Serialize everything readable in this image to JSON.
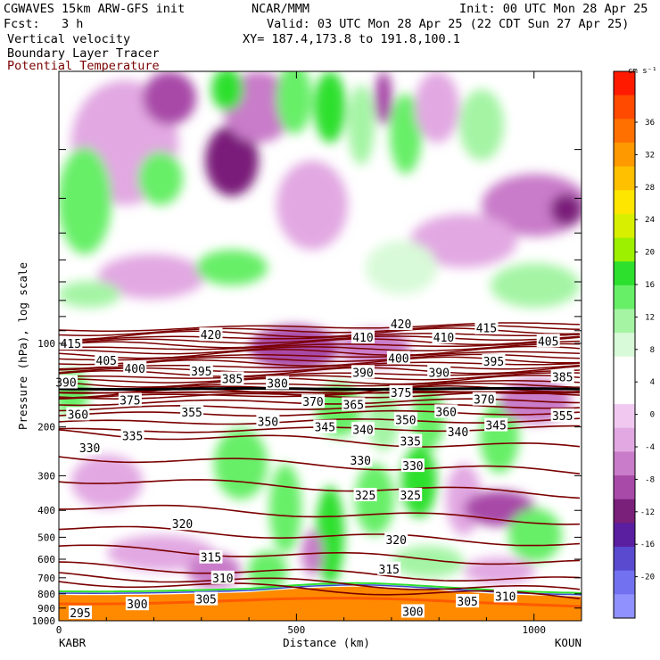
{
  "header": {
    "model": "CGWAVES 15km ARW-GFS init",
    "org": "NCAR/MMM",
    "init": "Init: 00 UTC Mon 28 Apr 25",
    "fcst": "Fcst:   3 h",
    "valid": "Valid: 03 UTC Mon 28 Apr 25 (22 CDT Sun 27 Apr 25)",
    "field1": "Vertical velocity",
    "xy": "XY= 187.4,173.8 to 191.8,100.1",
    "field2": "Boundary Layer Tracer",
    "field3": "Potential Temperature"
  },
  "colors": {
    "theta_line": "#7a0000",
    "bl_tracer": "#ff8a00"
  },
  "chart_data": {
    "type": "heatmap",
    "xlabel": "Distance (km)",
    "ylabel": "Pressure (hPa), log scale",
    "x_ticks": [
      "0",
      "500",
      "1000"
    ],
    "x_range": [
      0,
      1100
    ],
    "y_ticks": [
      "100",
      "200",
      "300",
      "400",
      "500",
      "600",
      "700",
      "800",
      "900",
      "1000"
    ],
    "y_tick_values": [
      100,
      200,
      300,
      400,
      500,
      600,
      700,
      800,
      900,
      1000
    ],
    "y_log_scale": true,
    "left_endpoint": "KABR",
    "right_endpoint": "KOUN",
    "colorbar": {
      "unit": "cm s⁻¹",
      "labels": [
        "36",
        "32",
        "28",
        "24",
        "20",
        "16",
        "12",
        "8",
        "4",
        "0",
        "-4",
        "-8",
        "-12",
        "-16",
        "-20"
      ],
      "values": [
        36,
        32,
        28,
        24,
        20,
        16,
        12,
        8,
        4,
        0,
        -4,
        -8,
        -12,
        -16,
        -20
      ],
      "colors": [
        "#ff1a00",
        "#ff4a00",
        "#ff7000",
        "#ff9900",
        "#ffc000",
        "#ffe600",
        "#d8f000",
        "#9cf000",
        "#2ee02e",
        "#68ef68",
        "#a4f4a4",
        "#d8fad8",
        "#ffffff",
        "#ffffff",
        "#f0c8f0",
        "#e2a8e2",
        "#c97cc9",
        "#a84aa8",
        "#7a1f7a",
        "#5a1fa0",
        "#5a4ad0",
        "#7272f0",
        "#9090ff"
      ]
    },
    "theta_contour_labels": [
      {
        "text": "415",
        "km": 25,
        "p": 100
      },
      {
        "text": "405",
        "km": 100,
        "p": 115
      },
      {
        "text": "400",
        "km": 160,
        "p": 123
      },
      {
        "text": "390",
        "km": 15,
        "p": 138
      },
      {
        "text": "420",
        "km": 320,
        "p": 93
      },
      {
        "text": "395",
        "km": 300,
        "p": 126
      },
      {
        "text": "385",
        "km": 365,
        "p": 134
      },
      {
        "text": "380",
        "km": 460,
        "p": 139
      },
      {
        "text": "375",
        "km": 150,
        "p": 160
      },
      {
        "text": "370",
        "km": 535,
        "p": 162
      },
      {
        "text": "365",
        "km": 620,
        "p": 166
      },
      {
        "text": "410",
        "km": 640,
        "p": 95
      },
      {
        "text": "390",
        "km": 640,
        "p": 127
      },
      {
        "text": "420",
        "km": 720,
        "p": 85
      },
      {
        "text": "400",
        "km": 715,
        "p": 113
      },
      {
        "text": "410",
        "km": 810,
        "p": 95
      },
      {
        "text": "390",
        "km": 800,
        "p": 127
      },
      {
        "text": "415",
        "km": 900,
        "p": 88
      },
      {
        "text": "395",
        "km": 915,
        "p": 116
      },
      {
        "text": "405",
        "km": 1030,
        "p": 98
      },
      {
        "text": "385",
        "km": 1060,
        "p": 132
      },
      {
        "text": "375",
        "km": 720,
        "p": 150
      },
      {
        "text": "370",
        "km": 895,
        "p": 159
      },
      {
        "text": "360",
        "km": 815,
        "p": 176
      },
      {
        "text": "355",
        "km": 1060,
        "p": 182
      },
      {
        "text": "360",
        "km": 40,
        "p": 180
      },
      {
        "text": "355",
        "km": 280,
        "p": 177
      },
      {
        "text": "350",
        "km": 440,
        "p": 191
      },
      {
        "text": "345",
        "km": 560,
        "p": 200
      },
      {
        "text": "340",
        "km": 640,
        "p": 204
      },
      {
        "text": "350",
        "km": 730,
        "p": 188
      },
      {
        "text": "345",
        "km": 920,
        "p": 197
      },
      {
        "text": "340",
        "km": 840,
        "p": 208
      },
      {
        "text": "335",
        "km": 155,
        "p": 215
      },
      {
        "text": "335",
        "km": 740,
        "p": 225
      },
      {
        "text": "330",
        "km": 65,
        "p": 238
      },
      {
        "text": "330",
        "km": 635,
        "p": 264
      },
      {
        "text": "330",
        "km": 745,
        "p": 276
      },
      {
        "text": "325",
        "km": 645,
        "p": 352
      },
      {
        "text": "325",
        "km": 740,
        "p": 352
      },
      {
        "text": "320",
        "km": 260,
        "p": 447
      },
      {
        "text": "320",
        "km": 710,
        "p": 510
      },
      {
        "text": "315",
        "km": 320,
        "p": 590
      },
      {
        "text": "315",
        "km": 695,
        "p": 650
      },
      {
        "text": "310",
        "km": 345,
        "p": 700
      },
      {
        "text": "310",
        "km": 940,
        "p": 815
      },
      {
        "text": "305",
        "km": 310,
        "p": 835
      },
      {
        "text": "305",
        "km": 860,
        "p": 850
      },
      {
        "text": "300",
        "km": 165,
        "p": 870
      },
      {
        "text": "300",
        "km": 745,
        "p": 925
      },
      {
        "text": "295",
        "km": 45,
        "p": 935
      }
    ]
  }
}
